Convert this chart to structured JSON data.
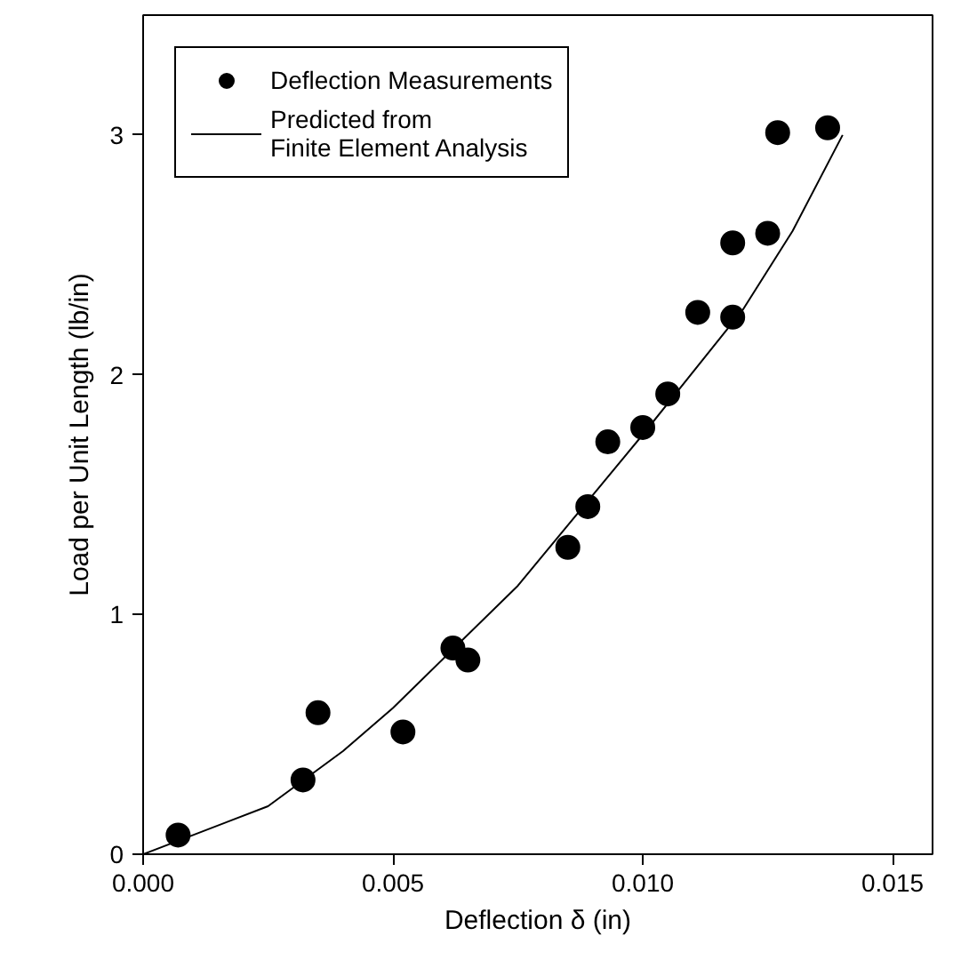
{
  "chart_data": {
    "type": "scatter",
    "xlabel": "Deflection δ (in)",
    "ylabel": "Load per Unit Length (lb/in)",
    "xlim": [
      0,
      0.0158
    ],
    "ylim": [
      0,
      3.5
    ],
    "xticks": [
      {
        "value": 0,
        "label": "0.000"
      },
      {
        "value": 0.005,
        "label": "0.005"
      },
      {
        "value": 0.01,
        "label": "0.010"
      },
      {
        "value": 0.015,
        "label": "0.015"
      }
    ],
    "yticks": [
      0,
      1,
      2,
      3
    ],
    "grid": false,
    "legend": "top left",
    "series": [
      {
        "name": "Deflection Measurements",
        "marker": "circle",
        "color": "#000000",
        "x": [
          0.0007,
          0.0032,
          0.0035,
          0.0052,
          0.0062,
          0.0065,
          0.0085,
          0.0089,
          0.0093,
          0.01,
          0.0105,
          0.0111,
          0.0118,
          0.0118,
          0.0125,
          0.0127,
          0.0137
        ],
        "values": [
          0.08,
          0.31,
          0.59,
          0.51,
          0.86,
          0.81,
          1.28,
          1.45,
          1.72,
          1.78,
          1.92,
          2.26,
          2.24,
          2.55,
          2.59,
          3.01,
          3.03
        ]
      },
      {
        "name": "Predicted from\nFinite Element Analysis",
        "type": "line",
        "line_style": "solid",
        "color": "#000000",
        "x": [
          0,
          0.0025,
          0.004,
          0.005,
          0.0075,
          0.01,
          0.012,
          0.013,
          0.014
        ],
        "values": [
          0,
          0.2,
          0.43,
          0.61,
          1.12,
          1.75,
          2.27,
          2.6,
          3.0
        ]
      }
    ]
  }
}
